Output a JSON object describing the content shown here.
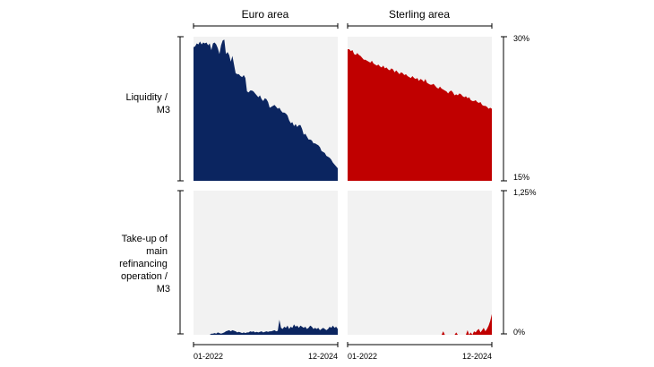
{
  "chart_data": {
    "type": "area",
    "layout": "2x2 small multiples",
    "columns": [
      "Euro area",
      "Sterling area"
    ],
    "rows": [
      {
        "label_lines": [
          "Liquidity /",
          "M3"
        ],
        "ylim": [
          15,
          30
        ],
        "tick_labels": {
          "top": "30%",
          "bottom": "15%"
        }
      },
      {
        "label_lines": [
          "Take-up of",
          "main",
          "refinancing",
          "operation /",
          "M3"
        ],
        "ylim": [
          0,
          1.25
        ],
        "tick_labels": {
          "top": "1,25%",
          "bottom": "0%"
        }
      }
    ],
    "x_start": "01-2022",
    "x_end": "12-2024",
    "x_tick_labels": [
      "01-2022",
      "12-2024"
    ],
    "colors": {
      "Euro area": "#0b2560",
      "Sterling area": "#c00000",
      "panel_bg": "#f2f2f2"
    },
    "series": [
      {
        "row": 0,
        "column": "Euro area",
        "unit": "%",
        "values": [
          28.9,
          29.0,
          29.3,
          29.2,
          29.5,
          29.2,
          29.4,
          29.3,
          29.4,
          29.1,
          29.3,
          28.6,
          29.3,
          29.4,
          29.2,
          28.8,
          28.2,
          29.1,
          29.6,
          29.7,
          28.2,
          28.4,
          28.1,
          27.4,
          28.0,
          27.1,
          26.2,
          26.1,
          26.1,
          25.9,
          25.8,
          26.0,
          25.7,
          24.3,
          24.2,
          24.4,
          24.4,
          24.3,
          24.1,
          23.9,
          23.7,
          23.9,
          23.5,
          23.3,
          23.6,
          23.5,
          23.2,
          22.6,
          22.7,
          22.8,
          22.9,
          22.7,
          22.5,
          22.6,
          22.3,
          22.1,
          22.1,
          22.0,
          21.8,
          21.3,
          21.0,
          21.1,
          20.7,
          20.9,
          20.6,
          20.8,
          20.8,
          20.4,
          19.8,
          19.9,
          19.6,
          19.3,
          19.3,
          19.2,
          18.9,
          18.9,
          18.8,
          18.7,
          18.5,
          18.1,
          18.0,
          17.9,
          17.6,
          17.5,
          17.4,
          17.2,
          16.9,
          16.7,
          16.5,
          16.3
        ]
      },
      {
        "row": 0,
        "column": "Sterling area",
        "unit": "%",
        "values": [
          28.7,
          28.7,
          28.5,
          28.6,
          28.2,
          28.1,
          28.3,
          28.1,
          28.0,
          27.8,
          27.6,
          27.6,
          27.5,
          27.4,
          27.3,
          27.5,
          27.2,
          27.1,
          27.0,
          27.1,
          26.9,
          26.8,
          27.0,
          26.7,
          26.8,
          26.6,
          26.5,
          26.7,
          26.6,
          26.3,
          26.5,
          26.3,
          26.1,
          26.3,
          26.2,
          26.0,
          26.1,
          25.9,
          25.8,
          25.7,
          25.9,
          25.7,
          25.6,
          25.7,
          25.4,
          25.6,
          25.5,
          25.3,
          25.6,
          25.2,
          25.1,
          25.0,
          25.0,
          25.1,
          24.9,
          24.7,
          24.6,
          24.8,
          24.6,
          24.5,
          24.4,
          24.3,
          24.1,
          24.3,
          24.4,
          24.2,
          23.9,
          24.0,
          23.9,
          24.1,
          24.0,
          23.8,
          23.7,
          23.8,
          23.6,
          23.7,
          23.4,
          23.3,
          23.3,
          23.4,
          23.2,
          23.1,
          23.2,
          22.9,
          22.8,
          22.8,
          22.7,
          22.5,
          22.6,
          22.5
        ]
      },
      {
        "row": 1,
        "column": "Euro area",
        "unit": "%",
        "values": [
          0,
          0,
          0,
          0,
          0,
          0,
          0,
          0,
          0,
          0,
          0,
          0.01,
          0.01,
          0.015,
          0.01,
          0.02,
          0.015,
          0.01,
          0.015,
          0.02,
          0.03,
          0.035,
          0.04,
          0.03,
          0.04,
          0.035,
          0.03,
          0.02,
          0.025,
          0.02,
          0.015,
          0.02,
          0.015,
          0.02,
          0.02,
          0.03,
          0.025,
          0.03,
          0.02,
          0.025,
          0.02,
          0.025,
          0.03,
          0.02,
          0.025,
          0.03,
          0.025,
          0.03,
          0.03,
          0.035,
          0.04,
          0.03,
          0.035,
          0.13,
          0.06,
          0.05,
          0.07,
          0.06,
          0.08,
          0.05,
          0.07,
          0.06,
          0.09,
          0.07,
          0.08,
          0.06,
          0.08,
          0.07,
          0.06,
          0.07,
          0.05,
          0.06,
          0.08,
          0.07,
          0.05,
          0.06,
          0.05,
          0.06,
          0.04,
          0.05,
          0.06,
          0.05,
          0.04,
          0.05,
          0.07,
          0.06,
          0.08,
          0.06,
          0.07,
          0.05
        ]
      },
      {
        "row": 1,
        "column": "Sterling area",
        "unit": "%",
        "values": [
          0,
          0,
          0,
          0,
          0,
          0,
          0,
          0,
          0,
          0,
          0,
          0,
          0,
          0,
          0,
          0,
          0,
          0,
          0,
          0,
          0,
          0,
          0,
          0,
          0,
          0,
          0,
          0,
          0,
          0,
          0,
          0,
          0,
          0,
          0,
          0,
          0,
          0,
          0,
          0,
          0,
          0,
          0,
          0,
          0,
          0,
          0,
          0,
          0,
          0,
          0,
          0,
          0,
          0,
          0,
          0,
          0,
          0,
          0,
          0.03,
          0,
          0,
          0,
          0,
          0,
          0,
          0,
          0.02,
          0,
          0,
          0,
          0,
          0,
          0,
          0.04,
          0,
          0.02,
          0,
          0.03,
          0.02,
          0.04,
          0.05,
          0.02,
          0.04,
          0.06,
          0.03,
          0.05,
          0.08,
          0.12,
          0.18
        ]
      }
    ]
  }
}
